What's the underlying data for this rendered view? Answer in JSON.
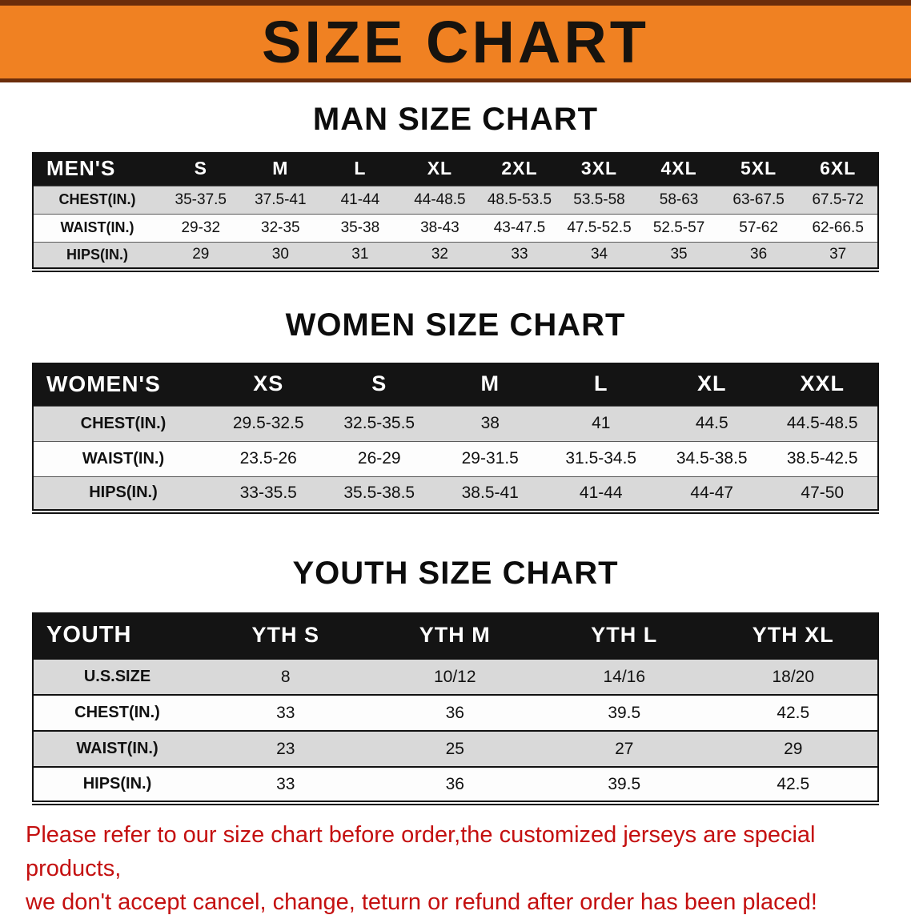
{
  "banner": {
    "title": "SIZE CHART"
  },
  "colors": {
    "banner_orange": "#f08122",
    "banner_border_brown": "#6b2d0b",
    "table_header_black": "#141414",
    "row_gray": "#d9d9d9",
    "disclaimer_red": "#c41010"
  },
  "sections": [
    {
      "heading": "MAN SIZE CHART",
      "table": {
        "header": [
          "MEN'S",
          "S",
          "M",
          "L",
          "XL",
          "2XL",
          "3XL",
          "4XL",
          "5XL",
          "6XL"
        ],
        "rows": [
          [
            "CHEST(IN.)",
            "35-37.5",
            "37.5-41",
            "41-44",
            "44-48.5",
            "48.5-53.5",
            "53.5-58",
            "58-63",
            "63-67.5",
            "67.5-72"
          ],
          [
            "WAIST(IN.)",
            "29-32",
            "32-35",
            "35-38",
            "38-43",
            "43-47.5",
            "47.5-52.5",
            "52.5-57",
            "57-62",
            "62-66.5"
          ],
          [
            "HIPS(IN.)",
            "29",
            "30",
            "31",
            "32",
            "33",
            "34",
            "35",
            "36",
            "37"
          ]
        ]
      }
    },
    {
      "heading": "WOMEN SIZE CHART",
      "table": {
        "header": [
          "WOMEN'S",
          "XS",
          "S",
          "M",
          "L",
          "XL",
          "XXL"
        ],
        "rows": [
          [
            "CHEST(IN.)",
            "29.5-32.5",
            "32.5-35.5",
            "38",
            "41",
            "44.5",
            "44.5-48.5"
          ],
          [
            "WAIST(IN.)",
            "23.5-26",
            "26-29",
            "29-31.5",
            "31.5-34.5",
            "34.5-38.5",
            "38.5-42.5"
          ],
          [
            "HIPS(IN.)",
            "33-35.5",
            "35.5-38.5",
            "38.5-41",
            "41-44",
            "44-47",
            "47-50"
          ]
        ]
      }
    },
    {
      "heading": "YOUTH SIZE CHART",
      "table": {
        "header": [
          "YOUTH",
          "YTH S",
          "YTH M",
          "YTH L",
          "YTH XL"
        ],
        "rows": [
          [
            "U.S.SIZE",
            "8",
            "10/12",
            "14/16",
            "18/20"
          ],
          [
            "CHEST(IN.)",
            "33",
            "36",
            "39.5",
            "42.5"
          ],
          [
            "WAIST(IN.)",
            "23",
            "25",
            "27",
            "29"
          ],
          [
            "HIPS(IN.)",
            "33",
            "36",
            "39.5",
            "42.5"
          ]
        ]
      }
    }
  ],
  "disclaimer": {
    "line1": "Please refer to our size chart before order,the customized jerseys are special products,",
    "line2": "we don't accept cancel, change, teturn or refund after order has been placed!"
  }
}
